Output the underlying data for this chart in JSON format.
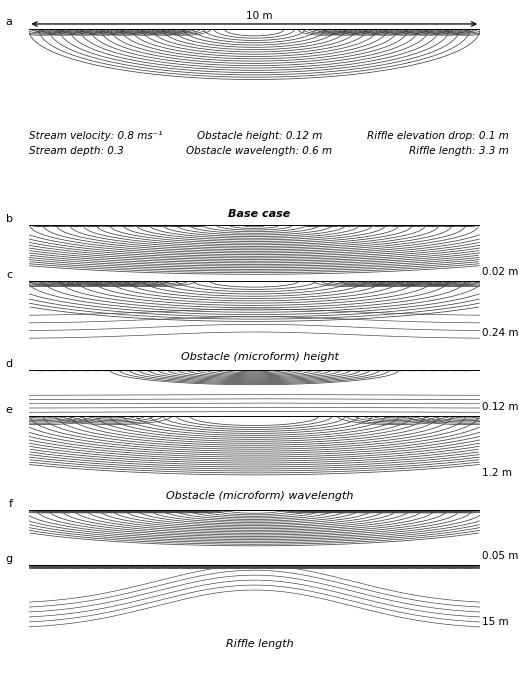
{
  "line_color": "#444444",
  "bg_color": "#ffffff",
  "line_width": 0.55,
  "font_size_label": 8,
  "font_size_annot": 7.5,
  "font_size_section": 8,
  "font_size_text": 7.5,
  "panels": {
    "a": {
      "label": "a",
      "type": "base"
    },
    "b": {
      "label": "b",
      "annot": "0.02 m",
      "type": "small_obs_height"
    },
    "c": {
      "label": "c",
      "annot": "0.24 m",
      "type": "large_obs_height"
    },
    "d": {
      "label": "d",
      "annot": "0.12 m",
      "type": "small_obs_wave"
    },
    "e": {
      "label": "e",
      "annot": "1.2 m",
      "type": "large_obs_wave"
    },
    "f": {
      "label": "f",
      "annot": "0.05 m",
      "type": "small_riffle"
    },
    "g": {
      "label": "g",
      "annot": "15 m",
      "type": "large_riffle"
    }
  },
  "section_labels": {
    "after_c": "Obstacle (microform) height",
    "after_e": "Obstacle (microform) wavelength",
    "after_g": "Riffle length"
  },
  "info_left": "Stream velocity: 0.8 ms⁻¹\nStream depth: 0.3",
  "info_center": "Obstacle height: 0.12 m\nObstacle wavelength: 0.6 m",
  "info_right": "Riffle elevation drop: 0.1 m\nRiffle length: 3.3 m",
  "info_base": "Base case",
  "arrow_label": "10 m"
}
